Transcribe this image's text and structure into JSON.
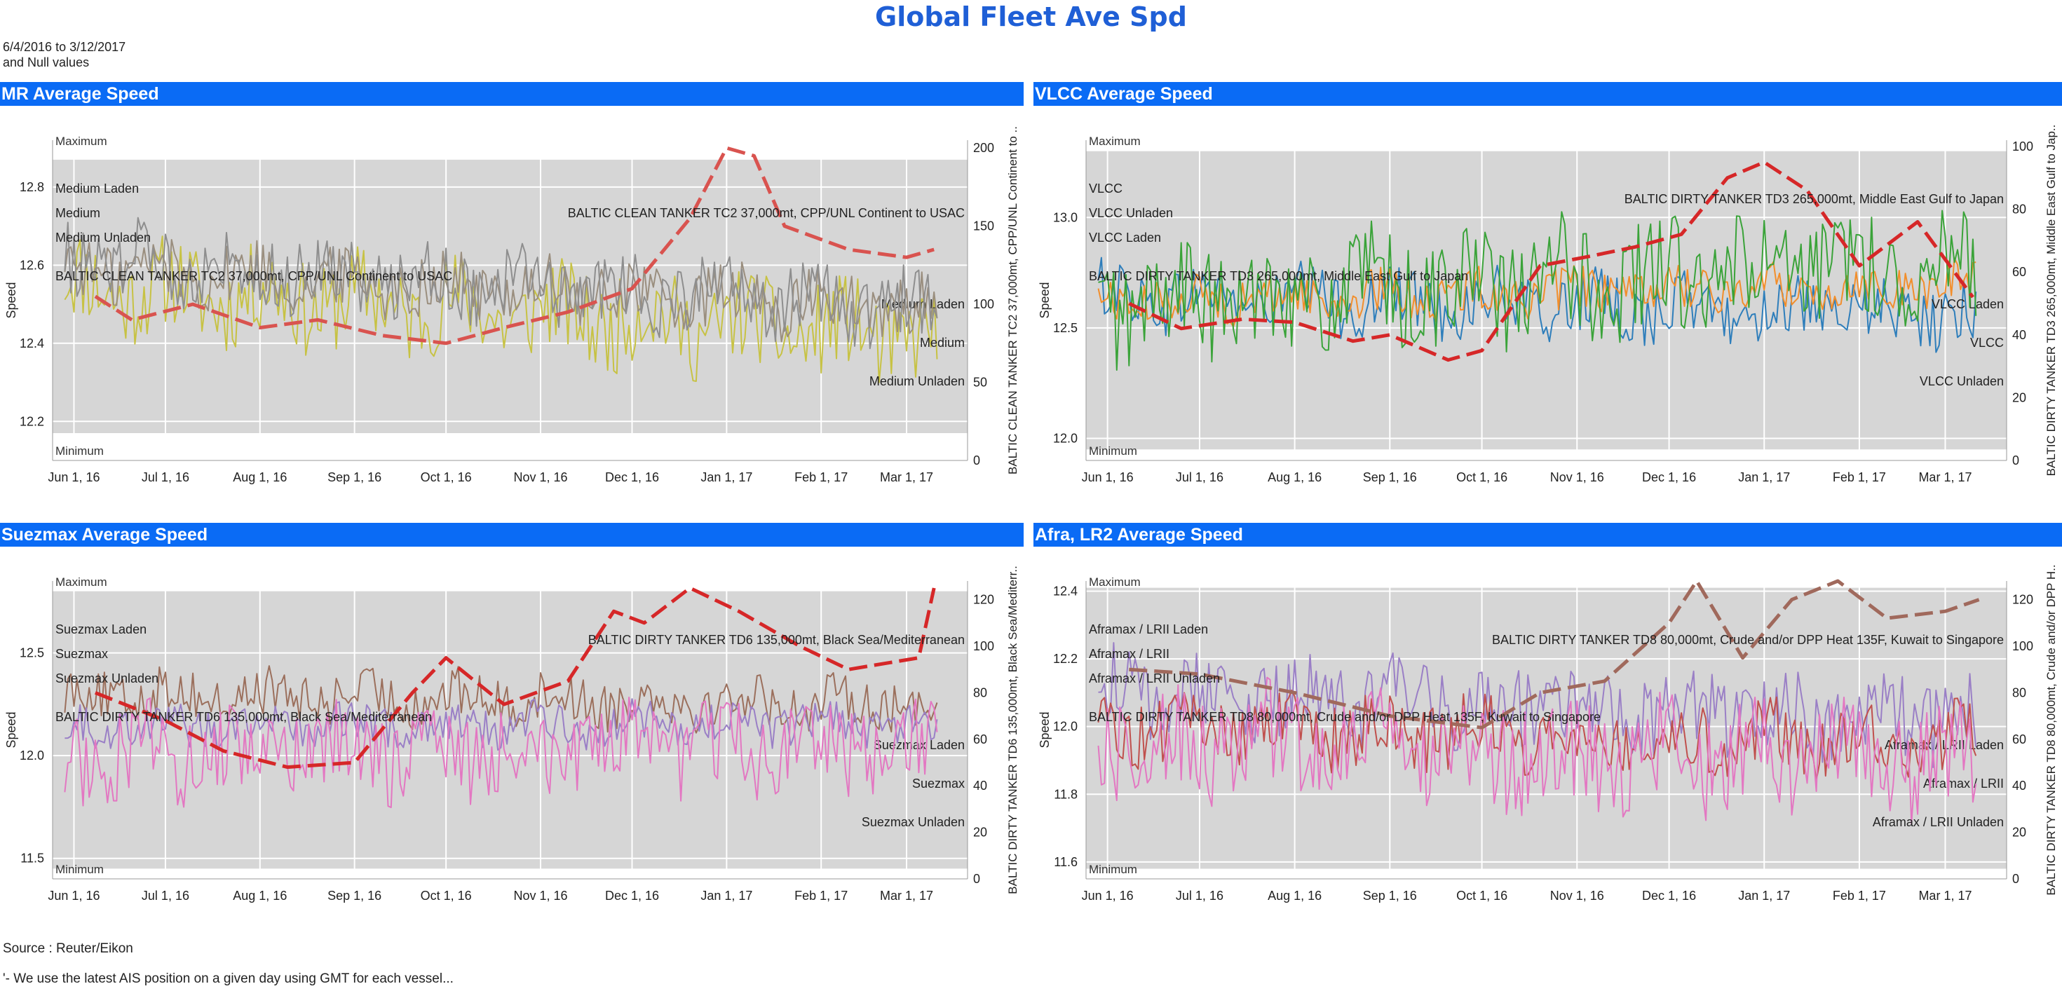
{
  "title": "Global Fleet Ave Spd",
  "filter": {
    "date_range": "6/4/2016 to 3/12/2017",
    "null_note": "and Null values"
  },
  "footer": {
    "source": "Source : Reuter/Eikon",
    "note": "'- We use the latest AIS position on a given day using GMT for each vessel..."
  },
  "colors": {
    "header_bg": "#0a6bf5",
    "title": "#1f5fd6",
    "plot_bg": "#d6d6d6"
  },
  "shared_x_axis": {
    "ticks": [
      "Jun 1, 16",
      "Jul 1, 16",
      "Aug 1, 16",
      "Sep 1, 16",
      "Oct 1, 16",
      "Nov 1, 16",
      "Dec 1, 16",
      "Jan 1, 17",
      "Feb 1, 17",
      "Mar 1, 17"
    ],
    "range": [
      "2016-05-25",
      "2017-03-21"
    ]
  },
  "chart_data": [
    {
      "panel": "MR Average Speed",
      "type": "line",
      "ylabel": "Speed",
      "ylim": [
        12.1,
        12.92
      ],
      "yticks": [
        "12.2",
        "12.4",
        "12.6",
        "12.8"
      ],
      "y2label": "BALTIC CLEAN TANKER TC2 37,000mt, CPP/UNL Continent to ..",
      "y2lim": [
        0,
        205
      ],
      "y2ticks": [
        "0",
        "50",
        "100",
        "150",
        "200"
      ],
      "maximum_label": "Maximum",
      "minimum_label": "Minimum",
      "band": [
        12.17,
        12.87
      ],
      "series": [
        {
          "name": "Medium Laden",
          "color": "#c7c244",
          "axis": "left",
          "base": 12.55,
          "trend": -0.14,
          "amp": 0.12,
          "end_label": "Medium Laden"
        },
        {
          "name": "Medium",
          "color": "#9a8e7e",
          "axis": "left",
          "base": 12.6,
          "trend": -0.12,
          "amp": 0.08,
          "end_label": "Medium"
        },
        {
          "name": "Medium Unladen",
          "color": "#8e8e8e",
          "axis": "left",
          "base": 12.62,
          "trend": -0.14,
          "amp": 0.09,
          "end_label": "Medium Unladen"
        },
        {
          "name": "BALTIC CLEAN TANKER TC2 37,000mt, CPP/UNL Continent to USAC",
          "color": "#d9534f",
          "axis": "right",
          "dashed": true,
          "points": [
            [
              "2016-06-08",
              105
            ],
            [
              "2016-06-20",
              90
            ],
            [
              "2016-07-10",
              100
            ],
            [
              "2016-08-01",
              85
            ],
            [
              "2016-08-20",
              90
            ],
            [
              "2016-09-10",
              80
            ],
            [
              "2016-10-01",
              75
            ],
            [
              "2016-10-20",
              85
            ],
            [
              "2016-11-10",
              95
            ],
            [
              "2016-12-01",
              110
            ],
            [
              "2016-12-20",
              155
            ],
            [
              "2017-01-01",
              200
            ],
            [
              "2017-01-10",
              195
            ],
            [
              "2017-01-20",
              150
            ],
            [
              "2017-02-10",
              135
            ],
            [
              "2017-03-01",
              130
            ],
            [
              "2017-03-10",
              135
            ]
          ],
          "end_label": "BALTIC CLEAN TANKER TC2 37,000mt, CPP/UNL Continent to USAC"
        }
      ]
    },
    {
      "panel": "VLCC Average Speed",
      "type": "line",
      "ylabel": "Speed",
      "ylim": [
        11.9,
        13.35
      ],
      "yticks": [
        "12.0",
        "12.5",
        "13.0"
      ],
      "y2label": "BALTIC DIRTY TANKER TD3 265,000mt, Middle East Gulf to Jap..",
      "y2lim": [
        0,
        102
      ],
      "y2ticks": [
        "0",
        "20",
        "40",
        "60",
        "80",
        "100"
      ],
      "maximum_label": "Maximum",
      "minimum_label": "Minimum",
      "band": [
        11.95,
        13.3
      ],
      "series": [
        {
          "name": "VLCC Laden",
          "color": "#2e7ebb",
          "axis": "left",
          "base": 12.65,
          "trend": -0.1,
          "amp": 0.14,
          "end_label": "VLCC Laden"
        },
        {
          "name": "VLCC",
          "color": "#f28e2b",
          "axis": "left",
          "base": 12.62,
          "trend": 0.08,
          "amp": 0.1,
          "end_label": "VLCC"
        },
        {
          "name": "VLCC Unladen",
          "color": "#3aa339",
          "axis": "left",
          "base": 12.6,
          "trend": 0.2,
          "amp": 0.25,
          "end_label": "VLCC Unladen"
        },
        {
          "name": "BALTIC DIRTY TANKER TD3 265,000mt, Middle East Gulf to Japan",
          "color": "#d62728",
          "axis": "right",
          "dashed": true,
          "points": [
            [
              "2016-06-08",
              50
            ],
            [
              "2016-06-25",
              42
            ],
            [
              "2016-07-15",
              45
            ],
            [
              "2016-08-01",
              44
            ],
            [
              "2016-08-20",
              38
            ],
            [
              "2016-09-01",
              40
            ],
            [
              "2016-09-20",
              32
            ],
            [
              "2016-10-01",
              35
            ],
            [
              "2016-10-20",
              62
            ],
            [
              "2016-11-05",
              65
            ],
            [
              "2016-11-20",
              68
            ],
            [
              "2016-12-05",
              72
            ],
            [
              "2016-12-20",
              90
            ],
            [
              "2017-01-01",
              95
            ],
            [
              "2017-01-15",
              86
            ],
            [
              "2017-02-01",
              62
            ],
            [
              "2017-02-20",
              76
            ],
            [
              "2017-03-10",
              52
            ]
          ],
          "end_label": "BALTIC DIRTY TANKER TD3 265,000mt, Middle East Gulf to Japan"
        }
      ]
    },
    {
      "panel": "Suezmax Average Speed",
      "type": "line",
      "ylabel": "Speed",
      "ylim": [
        11.4,
        12.85
      ],
      "yticks": [
        "11.5",
        "12.0",
        "12.5"
      ],
      "y2label": "BALTIC DIRTY TANKER TD6 135,000mt, Black Sea/Mediterr..",
      "y2lim": [
        0,
        128
      ],
      "y2ticks": [
        "0",
        "20",
        "40",
        "60",
        "80",
        "100",
        "120"
      ],
      "maximum_label": "Maximum",
      "minimum_label": "Minimum",
      "band": [
        11.45,
        12.8
      ],
      "series": [
        {
          "name": "Suezmax Laden",
          "color": "#9b6f5c",
          "axis": "left",
          "base": 12.3,
          "trend": -0.05,
          "amp": 0.12,
          "end_label": "Suezmax Laden"
        },
        {
          "name": "Suezmax",
          "color": "#9a7fc6",
          "axis": "left",
          "base": 12.15,
          "trend": 0.0,
          "amp": 0.1,
          "end_label": "Suezmax"
        },
        {
          "name": "Suezmax Unladen",
          "color": "#e377c2",
          "axis": "left",
          "base": 12.0,
          "trend": 0.05,
          "amp": 0.22,
          "end_label": "Suezmax Unladen"
        },
        {
          "name": "BALTIC DIRTY TANKER TD6 135,000mt, Black Sea/Mediterranean",
          "color": "#d62728",
          "axis": "right",
          "dashed": true,
          "points": [
            [
              "2016-06-08",
              80
            ],
            [
              "2016-07-01",
              68
            ],
            [
              "2016-07-20",
              55
            ],
            [
              "2016-08-10",
              48
            ],
            [
              "2016-09-01",
              50
            ],
            [
              "2016-09-20",
              80
            ],
            [
              "2016-10-01",
              95
            ],
            [
              "2016-10-20",
              75
            ],
            [
              "2016-11-10",
              85
            ],
            [
              "2016-11-25",
              115
            ],
            [
              "2016-12-05",
              110
            ],
            [
              "2016-12-20",
              125
            ],
            [
              "2017-01-05",
              115
            ],
            [
              "2017-01-25",
              100
            ],
            [
              "2017-02-10",
              90
            ],
            [
              "2017-03-05",
              95
            ],
            [
              "2017-03-10",
              125
            ]
          ],
          "end_label": "BALTIC DIRTY TANKER TD6 135,000mt, Black Sea/Mediterranean"
        }
      ]
    },
    {
      "panel": "Afra, LR2 Average Speed",
      "type": "line",
      "ylabel": "Speed",
      "ylim": [
        11.55,
        12.43
      ],
      "yticks": [
        "11.6",
        "11.8",
        "12.0",
        "12.2",
        "12.4"
      ],
      "y2label": "BALTIC DIRTY TANKER TD8 80,000mt, Crude and/or DPP H..",
      "y2lim": [
        0,
        128
      ],
      "y2ticks": [
        "0",
        "20",
        "40",
        "60",
        "80",
        "100",
        "120"
      ],
      "maximum_label": "Maximum",
      "minimum_label": "Minimum",
      "band": [
        11.58,
        12.41
      ],
      "series": [
        {
          "name": "Aframax / LRII Laden",
          "color": "#9a7fc6",
          "axis": "left",
          "base": 12.1,
          "trend": -0.08,
          "amp": 0.12,
          "end_label": "Aframax / LRII Laden"
        },
        {
          "name": "Aframax / LRII",
          "color": "#c0504d",
          "axis": "left",
          "base": 12.0,
          "trend": -0.04,
          "amp": 0.1,
          "end_label": "Aframax / LRII"
        },
        {
          "name": "Aframax / LRII Unladen",
          "color": "#e377c2",
          "axis": "left",
          "base": 11.95,
          "trend": -0.05,
          "amp": 0.16,
          "end_label": "Aframax / LRII Unladen"
        },
        {
          "name": "BALTIC DIRTY TANKER TD8 80,000mt, Crude and/or DPP Heat 135F, Kuwait to Singapore",
          "color": "#a0695c",
          "axis": "right",
          "dashed": true,
          "points": [
            [
              "2016-06-08",
              90
            ],
            [
              "2016-07-01",
              88
            ],
            [
              "2016-08-01",
              80
            ],
            [
              "2016-09-01",
              70
            ],
            [
              "2016-10-01",
              65
            ],
            [
              "2016-10-20",
              80
            ],
            [
              "2016-11-10",
              85
            ],
            [
              "2016-12-01",
              110
            ],
            [
              "2016-12-10",
              128
            ],
            [
              "2016-12-25",
              95
            ],
            [
              "2017-01-10",
              120
            ],
            [
              "2017-01-25",
              128
            ],
            [
              "2017-02-10",
              112
            ],
            [
              "2017-03-01",
              115
            ],
            [
              "2017-03-12",
              120
            ]
          ],
          "end_label": "BALTIC DIRTY TANKER TD8 80,000mt, Crude and/or DPP Heat 135F, Kuwait to Singapore"
        }
      ]
    }
  ],
  "series_labels_start": [
    [
      "Medium Laden",
      "Medium",
      "Medium Unladen"
    ],
    [
      "VLCC",
      "VLCC Unladen",
      "VLCC Laden"
    ],
    [
      "Suezmax Laden",
      "Suezmax",
      "Suezmax Unladen"
    ],
    [
      "Aframax / LRII Laden",
      "Aframax / LRII",
      "Aframax / LRII Unladen"
    ]
  ]
}
